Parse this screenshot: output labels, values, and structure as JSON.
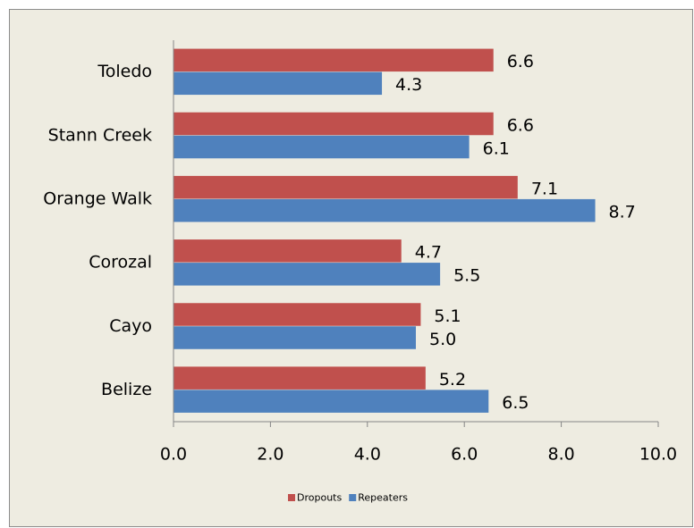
{
  "chart_data": {
    "type": "bar",
    "orientation": "horizontal",
    "categories": [
      "Toledo",
      "Stann Creek",
      "Orange Walk",
      "Corozal",
      "Cayo",
      "Belize"
    ],
    "series": [
      {
        "name": "Dropouts",
        "color": "#c0504d",
        "values": [
          6.6,
          6.6,
          7.1,
          4.7,
          5.1,
          5.2
        ],
        "value_labels": [
          "6.6",
          "6.6",
          "7.1",
          "4.7",
          "5.1",
          "5.2"
        ]
      },
      {
        "name": "Repeaters",
        "color": "#4f81bd",
        "values": [
          4.3,
          6.1,
          8.7,
          5.5,
          5.0,
          6.5
        ],
        "value_labels": [
          "4.3",
          "6.1",
          "8.7",
          "5.5",
          "5.0",
          "6.5"
        ]
      }
    ],
    "xlim": [
      0,
      10
    ],
    "xticks": [
      {
        "value": 0,
        "label": "0.0"
      },
      {
        "value": 2,
        "label": "2.0"
      },
      {
        "value": 4,
        "label": "4.0"
      },
      {
        "value": 6,
        "label": "6.0"
      },
      {
        "value": 8,
        "label": "8.0"
      },
      {
        "value": 10,
        "label": "10.0"
      }
    ],
    "legend": "bottom"
  }
}
